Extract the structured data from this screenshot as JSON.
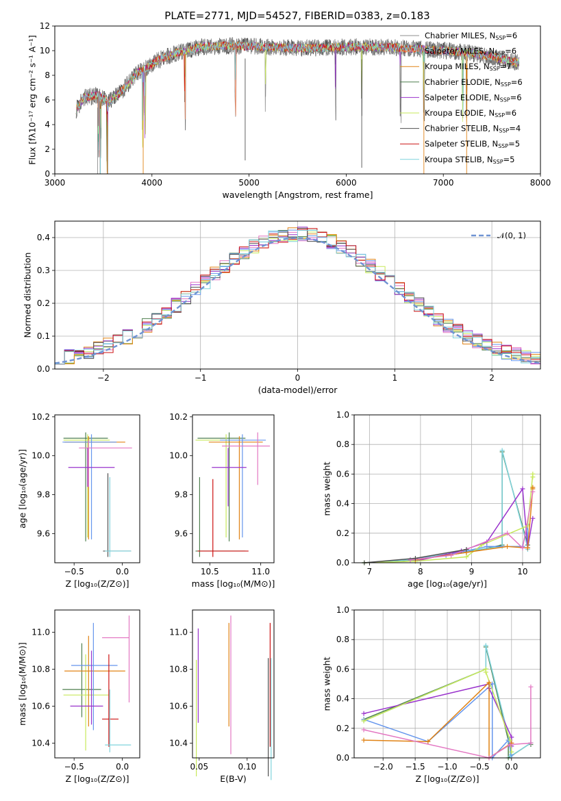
{
  "title": "PLATE=2771, MJD=54527, FIBERID=0383, z=0.183",
  "legend_models": [
    {
      "label": "Chabrier MILES, N",
      "sub": "SSP",
      "tail": "=6",
      "color": "#8c8c8c"
    },
    {
      "label": "Salpeter MILES, N",
      "sub": "SSP",
      "tail": "=6",
      "color": "#fc8d62"
    },
    {
      "label": "Kroupa MILES, N",
      "sub": "SSP",
      "tail": "=7",
      "color": "#e08214"
    },
    {
      "label": "Chabrier ELODIE, N",
      "sub": "SSP",
      "tail": "=6",
      "color": "#4d7f4d"
    },
    {
      "label": "Salpeter ELODIE, N",
      "sub": "SSP",
      "tail": "=6",
      "color": "#9932cc"
    },
    {
      "label": "Kroupa ELODIE, N",
      "sub": "SSP",
      "tail": "=6",
      "color": "#c7e85a"
    },
    {
      "label": "Chabrier STELIB, N",
      "sub": "SSP",
      "tail": "=4",
      "color": "#505050"
    },
    {
      "label": "Salpeter STELIB, N",
      "sub": "SSP",
      "tail": "=5",
      "color": "#cc1111"
    },
    {
      "label": "Kroupa STELIB, N",
      "sub": "SSP",
      "tail": "=5",
      "color": "#7fd3dc"
    }
  ],
  "chart_data": [
    {
      "type": "line",
      "xlabel": "wavelength [Angstrom, rest frame]",
      "ylabel": "Flux [fλ10⁻¹⁷ erg cm⁻² s⁻¹ A⁻¹]",
      "xlim": [
        3000,
        8000
      ],
      "ylim": [
        0,
        12
      ],
      "xticks": [
        "3000",
        "4000",
        "5000",
        "6000",
        "7000",
        "8000"
      ],
      "yticks": [
        "0",
        "2",
        "4",
        "6",
        "8",
        "10",
        "12"
      ],
      "data_range": [
        3220,
        7780
      ],
      "spectrum_envelope": {
        "x": [
          3220,
          3300,
          3450,
          3550,
          3700,
          3850,
          3950,
          4050,
          4250,
          4500,
          4800,
          5200,
          5600,
          6000,
          6400,
          6800,
          7200,
          7500,
          7780
        ],
        "y": [
          5.2,
          6.2,
          6.4,
          5.8,
          6.8,
          8.2,
          8.6,
          9.2,
          9.8,
          10.3,
          10.4,
          10.3,
          10.2,
          10.3,
          10.3,
          10.1,
          9.9,
          9.5,
          9.0
        ]
      },
      "series": [
        "Chabrier MILES",
        "Salpeter MILES",
        "Kroupa MILES",
        "Chabrier ELODIE",
        "Salpeter ELODIE",
        "Kroupa ELODIE",
        "Chabrier STELIB",
        "Salpeter STELIB",
        "Kroupa STELIB"
      ]
    },
    {
      "type": "step",
      "xlabel": "(data-model)/error",
      "ylabel": "Normed distribution",
      "xlim": [
        -2.5,
        2.5
      ],
      "ylim": [
        0,
        0.45
      ],
      "xticks": [
        "−2",
        "−1",
        "0",
        "1",
        "2"
      ],
      "yticks": [
        "0.0",
        "0.1",
        "0.2",
        "0.3",
        "0.4"
      ],
      "reference": {
        "name": "𝒩(0, 1)",
        "mean": 0,
        "sigma": 1
      },
      "bin_width": 0.1
    },
    {
      "type": "errorbar",
      "xlabel": "Z [log₁₀(Z/Z⊙)]",
      "ylabel": "age  [log₁₀(age/yr)]",
      "xlim": [
        -0.7,
        0.18
      ],
      "ylim": [
        9.45,
        10.21
      ],
      "xticks": [
        "−0.5",
        "0.0"
      ],
      "xtickv": [
        -0.5,
        0.0
      ],
      "yticks": [
        "9.6",
        "9.8",
        "10.0",
        "10.2"
      ],
      "ytickv": [
        9.6,
        9.8,
        10.0,
        10.2
      ],
      "points": [
        {
          "x": -0.38,
          "xerr": [
            0.23,
            0.23
          ],
          "y": 10.09,
          "yerr": [
            0.53,
            0.03
          ],
          "color": "#4d7f4d"
        },
        {
          "x": -0.36,
          "xerr": [
            0.25,
            0.23
          ],
          "y": 10.08,
          "yerr": [
            0.5,
            0.03
          ],
          "color": "#c7e85a"
        },
        {
          "x": -0.35,
          "xerr": [
            0.25,
            0.38
          ],
          "y": 10.07,
          "yerr": [
            0.5,
            0.03
          ],
          "color": "#e08214"
        },
        {
          "x": -0.32,
          "xerr": [
            0.3,
            0.26
          ],
          "y": 10.07,
          "yerr": [
            0.5,
            0.04
          ],
          "color": "#6495ed"
        },
        {
          "x": -0.35,
          "xerr": [
            0.1,
            0.45
          ],
          "y": 10.04,
          "yerr": [
            0.2,
            0.04
          ],
          "color": "#e377c2"
        },
        {
          "x": -0.36,
          "xerr": [
            0.2,
            0.28
          ],
          "y": 9.94,
          "yerr": [
            0.1,
            0.1
          ],
          "color": "#9932cc"
        },
        {
          "x": -0.15,
          "xerr": [
            0.05,
            0.24
          ],
          "y": 9.51,
          "yerr": [
            0.03,
            0.4
          ],
          "color": "#505050"
        },
        {
          "x": -0.13,
          "xerr": [
            0.05,
            0.22
          ],
          "y": 9.51,
          "yerr": [
            0.03,
            0.38
          ],
          "color": "#7fd3dc"
        }
      ]
    },
    {
      "type": "errorbar",
      "xlabel": "mass [log₁₀(M/M⊙)]",
      "ylabel": "",
      "xlim": [
        10.33,
        11.13
      ],
      "ylim": [
        9.45,
        10.21
      ],
      "xticks": [
        "10.5",
        "11.0"
      ],
      "xtickv": [
        10.5,
        11.0
      ],
      "yticks": [
        "9.6",
        "9.8",
        "10.0",
        "10.2"
      ],
      "ytickv": [
        9.6,
        9.8,
        10.0,
        10.2
      ],
      "points": [
        {
          "x": 10.69,
          "xerr": [
            0.31,
            0.16
          ],
          "y": 10.09,
          "yerr": [
            0.53,
            0.03
          ],
          "color": "#4d7f4d"
        },
        {
          "x": 10.66,
          "xerr": [
            0.3,
            0.2
          ],
          "y": 10.08,
          "yerr": [
            0.5,
            0.03
          ],
          "color": "#c7e85a"
        },
        {
          "x": 10.79,
          "xerr": [
            0.3,
            0.23
          ],
          "y": 10.07,
          "yerr": [
            0.5,
            0.03
          ],
          "color": "#e08214"
        },
        {
          "x": 10.82,
          "xerr": [
            0.22,
            0.23
          ],
          "y": 10.08,
          "yerr": [
            0.5,
            0.03
          ],
          "color": "#6495ed"
        },
        {
          "x": 10.97,
          "xerr": [
            0.35,
            0.12
          ],
          "y": 10.05,
          "yerr": [
            0.2,
            0.07
          ],
          "color": "#e377c2"
        },
        {
          "x": 10.68,
          "xerr": [
            0.16,
            0.18
          ],
          "y": 9.94,
          "yerr": [
            0.2,
            0.1
          ],
          "color": "#9932cc"
        },
        {
          "x": 10.4,
          "xerr": [
            0.04,
            0.45
          ],
          "y": 9.51,
          "yerr": [
            0.03,
            0.38
          ],
          "color": "#4d7f4d"
        },
        {
          "x": 10.53,
          "xerr": [
            0.15,
            0.35
          ],
          "y": 9.51,
          "yerr": [
            0.03,
            0.37
          ],
          "color": "#cc1111"
        }
      ]
    },
    {
      "type": "line",
      "xlabel": "age  [log₁₀(age/yr)]",
      "ylabel": "mass weight",
      "xlim": [
        6.7,
        10.35
      ],
      "ylim": [
        0,
        1.0
      ],
      "xticks": [
        "7",
        "8",
        "9",
        "10"
      ],
      "xtickv": [
        7,
        8,
        9,
        10
      ],
      "yticks": [
        "0.0",
        "0.2",
        "0.4",
        "0.6",
        "0.8",
        "1.0"
      ],
      "ytickv": [
        0,
        0.2,
        0.4,
        0.6,
        0.8,
        1.0
      ],
      "series": [
        {
          "color": "#4d7f4d",
          "x": [
            6.9,
            7.9,
            8.9,
            9.6,
            9.6,
            10.1,
            10.1
          ],
          "y": [
            0.0,
            0.02,
            0.07,
            0.12,
            0.75,
            0.12,
            0.12
          ]
        },
        {
          "color": "#7fd3dc",
          "x": [
            6.9,
            7.8,
            8.9,
            9.6,
            9.6,
            10.1,
            10.1
          ],
          "y": [
            0.0,
            0.02,
            0.08,
            0.11,
            0.76,
            0.1,
            0.09
          ]
        },
        {
          "color": "#6495ed",
          "x": [
            7.8,
            8.5,
            9.3,
            10.0,
            10.1,
            10.1
          ],
          "y": [
            0.02,
            0.05,
            0.11,
            0.11,
            0.26,
            0.1
          ]
        },
        {
          "color": "#9932cc",
          "x": [
            7.9,
            8.8,
            9.3,
            10.0,
            10.1,
            10.2
          ],
          "y": [
            0.01,
            0.08,
            0.14,
            0.5,
            0.1,
            0.3
          ]
        },
        {
          "color": "#c7e85a",
          "x": [
            6.9,
            7.9,
            8.9,
            9.2,
            10.1,
            10.2,
            10.2
          ],
          "y": [
            0.0,
            0.01,
            0.04,
            0.12,
            0.25,
            0.6,
            0.58
          ]
        },
        {
          "color": "#e08214",
          "x": [
            7.9,
            8.9,
            9.7,
            10.1,
            10.2,
            10.2
          ],
          "y": [
            0.02,
            0.07,
            0.11,
            0.1,
            0.5,
            0.51
          ]
        },
        {
          "color": "#e377c2",
          "x": [
            7.8,
            8.6,
            9.7,
            10.0,
            10.2
          ],
          "y": [
            0.02,
            0.05,
            0.2,
            0.1,
            0.48
          ]
        },
        {
          "color": "#505050",
          "x": [
            6.9,
            7.9,
            8.9
          ],
          "y": [
            0.0,
            0.03,
            0.09
          ]
        }
      ]
    },
    {
      "type": "errorbar",
      "xlabel": "Z [log₁₀(Z/Z⊙)]",
      "ylabel": "mass [log₁₀(M/M⊙)]",
      "xlim": [
        -0.7,
        0.18
      ],
      "ylim": [
        10.32,
        11.12
      ],
      "xticks": [
        "−0.5",
        "0.0"
      ],
      "xtickv": [
        -0.5,
        0.0
      ],
      "yticks": [
        "10.4",
        "10.6",
        "10.8",
        "11.0"
      ],
      "ytickv": [
        10.4,
        10.6,
        10.8,
        11.0
      ],
      "points": [
        {
          "x": -0.42,
          "xerr": [
            0.2,
            0.2
          ],
          "y": 10.69,
          "yerr": [
            0.15,
            0.25
          ],
          "color": "#4d7f4d"
        },
        {
          "x": -0.38,
          "xerr": [
            0.23,
            0.24
          ],
          "y": 10.66,
          "yerr": [
            0.3,
            0.22
          ],
          "color": "#c7e85a"
        },
        {
          "x": -0.35,
          "xerr": [
            0.25,
            0.38
          ],
          "y": 10.79,
          "yerr": [
            0.3,
            0.19
          ],
          "color": "#e08214"
        },
        {
          "x": -0.3,
          "xerr": [
            0.23,
            0.25
          ],
          "y": 10.82,
          "yerr": [
            0.35,
            0.23
          ],
          "color": "#6495ed"
        },
        {
          "x": -0.32,
          "xerr": [
            0.22,
            0.12
          ],
          "y": 10.6,
          "yerr": [
            0.1,
            0.3
          ],
          "color": "#9932cc"
        },
        {
          "x": 0.07,
          "xerr": [
            0.28,
            0.0
          ],
          "y": 10.97,
          "yerr": [
            0.35,
            0.12
          ],
          "color": "#e377c2"
        },
        {
          "x": -0.14,
          "xerr": [
            0.07,
            0.1
          ],
          "y": 10.53,
          "yerr": [
            0.15,
            0.35
          ],
          "color": "#cc1111"
        },
        {
          "x": -0.13,
          "xerr": [
            0.05,
            0.22
          ],
          "y": 10.39,
          "yerr": [
            0.04,
            0.3
          ],
          "color": "#7fd3dc"
        }
      ]
    },
    {
      "type": "errorbar",
      "xlabel": "E(B-V)",
      "ylabel": "",
      "xlim": [
        0.043,
        0.128
      ],
      "ylim": [
        10.32,
        11.12
      ],
      "xticks": [
        "0.05",
        "0.10"
      ],
      "xtickv": [
        0.05,
        0.1
      ],
      "yticks": [
        "10.4",
        "10.6",
        "10.8",
        "11.0"
      ],
      "ytickv": [
        10.4,
        10.6,
        10.8,
        11.0
      ],
      "points": [
        {
          "x": 0.047,
          "yerr": [
            0.38,
            0.25
          ],
          "y": 10.6,
          "color": "#c7e85a"
        },
        {
          "x": 0.049,
          "yerr": [
            0.15,
            0.36
          ],
          "y": 10.66,
          "color": "#9932cc"
        },
        {
          "x": 0.081,
          "yerr": [
            0.32,
            0.24
          ],
          "y": 10.81,
          "color": "#e08214"
        },
        {
          "x": 0.083,
          "yerr": [
            0.48,
            0.27
          ],
          "y": 10.82,
          "color": "#e377c2"
        },
        {
          "x": 0.122,
          "yerr": [
            0.38,
            0.26
          ],
          "y": 10.6,
          "color": "#505050"
        },
        {
          "x": 0.124,
          "yerr": [
            0.42,
            0.25
          ],
          "y": 10.8,
          "color": "#cc1111"
        },
        {
          "x": 0.125,
          "yerr": [
            0.4,
            0.26
          ],
          "y": 10.6,
          "color": "#7fd3dc"
        }
      ]
    },
    {
      "type": "line",
      "xlabel": "Z [log₁₀(Z/Z⊙)]",
      "ylabel": "mass weight",
      "xlim": [
        -2.45,
        0.45
      ],
      "ylim": [
        0,
        1.0
      ],
      "xticks": [
        "−2.0",
        "−1.5",
        "−1.0",
        "−0.5",
        "0.0"
      ],
      "xtickv": [
        -2.0,
        -1.5,
        -1.0,
        -0.5,
        0.0
      ],
      "yticks": [
        "0.0",
        "0.2",
        "0.4",
        "0.6",
        "0.8",
        "1.0"
      ],
      "ytickv": [
        0,
        0.2,
        0.4,
        0.6,
        0.8,
        1.0
      ],
      "series": [
        {
          "color": "#4d7f4d",
          "x": [
            -2.3,
            -0.4,
            -0.4,
            -0.05,
            -0.05,
            0.3,
            0.3
          ],
          "y": [
            0.26,
            0.6,
            0.75,
            0.12,
            0.0,
            0.1,
            0.09
          ]
        },
        {
          "color": "#7fd3dc",
          "x": [
            -2.3,
            -0.4,
            -0.4,
            -0.02,
            -0.02,
            0.3
          ],
          "y": [
            0.25,
            0.6,
            0.76,
            0.1,
            0.01,
            0.1
          ]
        },
        {
          "color": "#6495ed",
          "x": [
            -2.3,
            -1.3,
            -0.3,
            -0.3,
            -0.05,
            0.0
          ],
          "y": [
            0.26,
            0.11,
            0.5,
            0.0,
            0.12,
            0.02
          ]
        },
        {
          "color": "#9932cc",
          "x": [
            -2.3,
            -0.35,
            -0.35,
            0.0,
            0.0
          ],
          "y": [
            0.3,
            0.5,
            0.47,
            0.14,
            0.08
          ]
        },
        {
          "color": "#c7e85a",
          "x": [
            -2.3,
            -0.4,
            -0.4,
            -0.02,
            0.0
          ],
          "y": [
            0.25,
            0.6,
            0.58,
            0.12,
            0.04
          ]
        },
        {
          "color": "#e08214",
          "x": [
            -2.3,
            -1.3,
            -0.35,
            -0.35,
            0.0
          ],
          "y": [
            0.12,
            0.11,
            0.51,
            0.0,
            0.1
          ]
        },
        {
          "color": "#e377c2",
          "x": [
            -2.3,
            -0.35,
            -0.02,
            0.3,
            0.3
          ],
          "y": [
            0.19,
            0.0,
            0.09,
            0.1,
            0.48
          ]
        }
      ]
    }
  ]
}
